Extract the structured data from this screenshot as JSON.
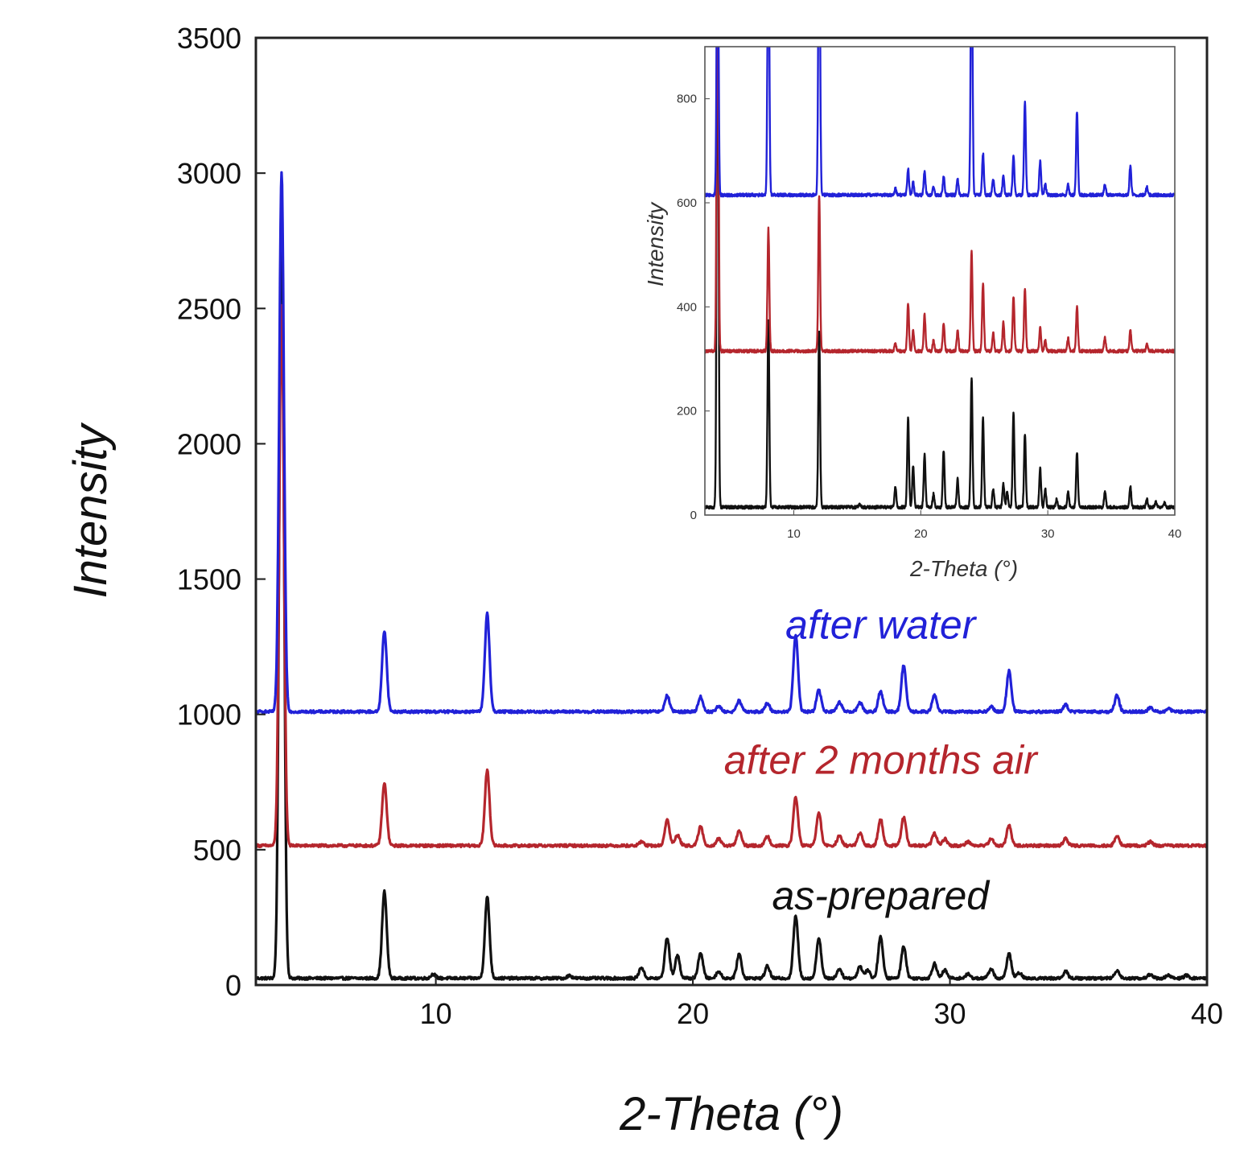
{
  "chart_data": [
    {
      "id": "main",
      "type": "line",
      "xlabel": "2-Theta (°)",
      "ylabel": "Intensity",
      "xlim": [
        3,
        40
      ],
      "ylim": [
        0,
        3500
      ],
      "x_ticks": [
        10,
        20,
        30,
        40
      ],
      "y_ticks": [
        0,
        500,
        1000,
        1500,
        2000,
        2500,
        3000,
        3500
      ],
      "grid": false,
      "series": [
        {
          "name": "as-prepared",
          "color": "#111111",
          "baseline": 25,
          "noise": 5,
          "peaks": [
            [
              4.0,
              2930
            ],
            [
              8.0,
              320
            ],
            [
              9.9,
              15
            ],
            [
              12.0,
              300
            ],
            [
              15.2,
              10
            ],
            [
              18.0,
              40
            ],
            [
              19.0,
              150
            ],
            [
              19.4,
              85
            ],
            [
              20.3,
              95
            ],
            [
              21.0,
              25
            ],
            [
              21.8,
              90
            ],
            [
              22.9,
              45
            ],
            [
              24.0,
              230
            ],
            [
              24.9,
              150
            ],
            [
              25.7,
              35
            ],
            [
              26.5,
              45
            ],
            [
              26.8,
              30
            ],
            [
              27.3,
              155
            ],
            [
              28.2,
              120
            ],
            [
              29.4,
              55
            ],
            [
              29.8,
              30
            ],
            [
              30.7,
              15
            ],
            [
              31.6,
              35
            ],
            [
              32.3,
              90
            ],
            [
              32.7,
              20
            ],
            [
              34.5,
              25
            ],
            [
              36.5,
              30
            ],
            [
              37.8,
              15
            ],
            [
              38.5,
              10
            ],
            [
              39.2,
              10
            ]
          ]
        },
        {
          "name": "after 2 months air",
          "color": "#b5262d",
          "baseline": 515,
          "noise": 5,
          "peaks": [
            [
              4.0,
              2000
            ],
            [
              8.0,
              230
            ],
            [
              12.0,
              280
            ],
            [
              18.0,
              15
            ],
            [
              19.0,
              95
            ],
            [
              19.4,
              40
            ],
            [
              20.3,
              70
            ],
            [
              21.0,
              25
            ],
            [
              21.8,
              55
            ],
            [
              22.9,
              35
            ],
            [
              24.0,
              180
            ],
            [
              24.9,
              120
            ],
            [
              25.7,
              35
            ],
            [
              26.5,
              45
            ],
            [
              27.3,
              100
            ],
            [
              28.2,
              105
            ],
            [
              29.4,
              45
            ],
            [
              29.8,
              25
            ],
            [
              30.7,
              15
            ],
            [
              31.6,
              25
            ],
            [
              32.3,
              75
            ],
            [
              34.5,
              25
            ],
            [
              36.5,
              35
            ],
            [
              37.8,
              15
            ]
          ]
        },
        {
          "name": "after water",
          "color": "#2121d8",
          "baseline": 1010,
          "noise": 5,
          "peaks": [
            [
              4.0,
              1990
            ],
            [
              8.0,
              300
            ],
            [
              12.0,
              365
            ],
            [
              19.0,
              60
            ],
            [
              20.3,
              55
            ],
            [
              21.0,
              20
            ],
            [
              21.8,
              40
            ],
            [
              22.9,
              30
            ],
            [
              24.0,
              285
            ],
            [
              24.9,
              80
            ],
            [
              25.7,
              35
            ],
            [
              26.5,
              35
            ],
            [
              27.3,
              75
            ],
            [
              28.2,
              170
            ],
            [
              29.4,
              60
            ],
            [
              31.6,
              20
            ],
            [
              32.3,
              150
            ],
            [
              34.5,
              25
            ],
            [
              36.5,
              60
            ],
            [
              37.8,
              15
            ],
            [
              38.5,
              10
            ]
          ]
        }
      ],
      "annotations": [
        {
          "text": "after water",
          "series": "after water",
          "x": 27.3,
          "y": 1280
        },
        {
          "text": "after 2 months air",
          "series": "after 2 months air",
          "x": 27.3,
          "y": 780
        },
        {
          "text": "as-prepared",
          "series": "as-prepared",
          "x": 27.3,
          "y": 280
        }
      ]
    },
    {
      "id": "inset",
      "type": "line",
      "xlabel": "2-Theta (°)",
      "ylabel": "Intensity",
      "xlim": [
        3,
        40
      ],
      "ylim": [
        0,
        900
      ],
      "x_ticks": [
        10,
        20,
        30,
        40
      ],
      "y_ticks": [
        0,
        200,
        400,
        600,
        800
      ],
      "grid": false,
      "series": [
        {
          "name": "as-prepared",
          "color": "#111111",
          "baseline": 15,
          "noise": 3,
          "peaks": [
            [
              4.0,
              1200
            ],
            [
              8.0,
              360
            ],
            [
              12.0,
              340
            ],
            [
              15.2,
              6
            ],
            [
              18.0,
              40
            ],
            [
              19.0,
              170
            ],
            [
              19.4,
              80
            ],
            [
              20.3,
              100
            ],
            [
              21.0,
              25
            ],
            [
              21.8,
              110
            ],
            [
              22.9,
              55
            ],
            [
              24.0,
              250
            ],
            [
              24.9,
              170
            ],
            [
              25.7,
              35
            ],
            [
              26.5,
              45
            ],
            [
              26.8,
              30
            ],
            [
              27.3,
              180
            ],
            [
              28.2,
              140
            ],
            [
              29.4,
              75
            ],
            [
              29.8,
              35
            ],
            [
              30.7,
              15
            ],
            [
              31.6,
              30
            ],
            [
              32.3,
              105
            ],
            [
              34.5,
              30
            ],
            [
              36.5,
              40
            ],
            [
              37.8,
              15
            ],
            [
              38.5,
              10
            ],
            [
              39.2,
              8
            ]
          ]
        },
        {
          "name": "after 2 months air",
          "color": "#b5262d",
          "baseline": 315,
          "noise": 3,
          "peaks": [
            [
              4.0,
              900
            ],
            [
              8.0,
              235
            ],
            [
              12.0,
              300
            ],
            [
              18.0,
              15
            ],
            [
              19.0,
              90
            ],
            [
              19.4,
              40
            ],
            [
              20.3,
              70
            ],
            [
              21.0,
              20
            ],
            [
              21.8,
              55
            ],
            [
              22.9,
              40
            ],
            [
              24.0,
              190
            ],
            [
              24.9,
              130
            ],
            [
              25.7,
              35
            ],
            [
              26.5,
              55
            ],
            [
              27.3,
              105
            ],
            [
              28.2,
              120
            ],
            [
              29.4,
              45
            ],
            [
              29.8,
              20
            ],
            [
              31.6,
              25
            ],
            [
              32.3,
              85
            ],
            [
              34.5,
              25
            ],
            [
              36.5,
              40
            ],
            [
              37.8,
              12
            ]
          ]
        },
        {
          "name": "after water",
          "color": "#2121d8",
          "baseline": 615,
          "noise": 3,
          "peaks": [
            [
              4.0,
              600
            ],
            [
              8.0,
              550
            ],
            [
              12.0,
              620
            ],
            [
              18.0,
              12
            ],
            [
              19.0,
              50
            ],
            [
              19.4,
              25
            ],
            [
              20.3,
              45
            ],
            [
              21.0,
              15
            ],
            [
              21.8,
              35
            ],
            [
              22.9,
              30
            ],
            [
              24.0,
              540
            ],
            [
              24.9,
              80
            ],
            [
              25.7,
              30
            ],
            [
              26.5,
              35
            ],
            [
              27.3,
              75
            ],
            [
              28.2,
              180
            ],
            [
              29.4,
              65
            ],
            [
              29.8,
              20
            ],
            [
              31.6,
              20
            ],
            [
              32.3,
              160
            ],
            [
              34.5,
              20
            ],
            [
              36.5,
              55
            ],
            [
              37.8,
              15
            ]
          ]
        }
      ]
    }
  ]
}
